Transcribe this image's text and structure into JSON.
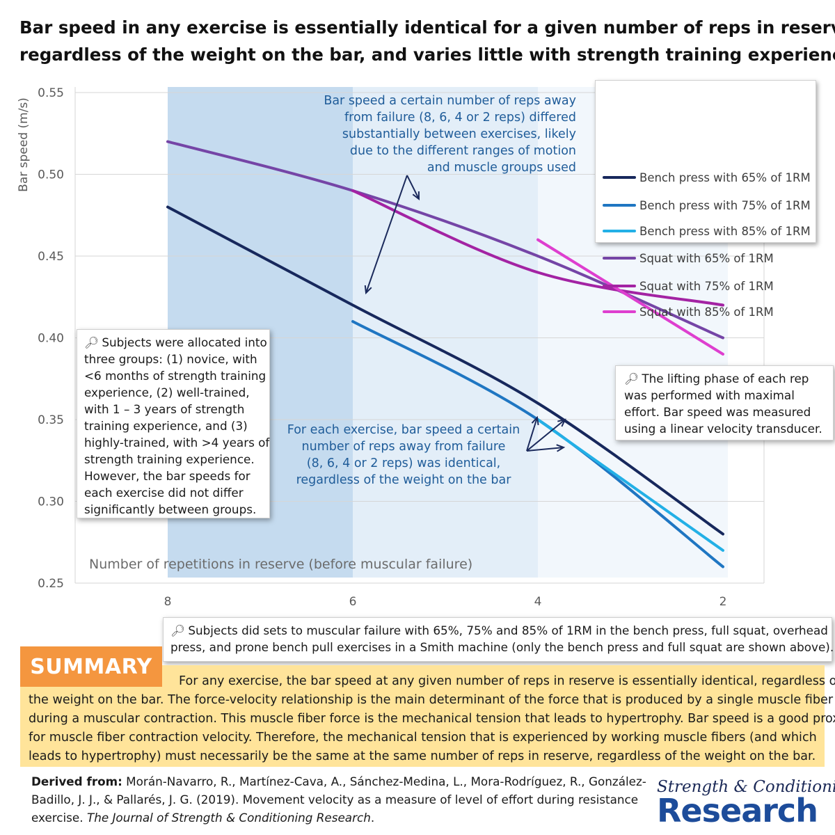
{
  "title_lines": [
    "Bar speed in any exercise is essentially identical for a given number of reps in reserve,",
    "regardless of the weight on the bar, and varies little with strength training experience"
  ],
  "chart_data": {
    "type": "line",
    "title": "Bar speed in any exercise is essentially identical for a given number of reps in reserve, regardless of the weight on the bar, and varies little with strength training experience",
    "xlabel": "Number of repetitions in reserve (before muscular failure)",
    "ylabel": "Bar speed (m/s)",
    "x_ticks": [
      8,
      6,
      4,
      2
    ],
    "y_ticks": [
      "0.25",
      "0.30",
      "0.35",
      "0.40",
      "0.45",
      "0.50",
      "0.55"
    ],
    "ylim": [
      0.25,
      0.55
    ],
    "xlim": [
      8.9,
      1.6
    ],
    "grid": true,
    "shaded_regions": [
      {
        "from": 8,
        "to": 6,
        "color": "#c5dbef"
      },
      {
        "from": 6,
        "to": 4,
        "color": "#e3eef8"
      },
      {
        "from": 4,
        "to": 2,
        "color": "#f2f7fc"
      }
    ],
    "series": [
      {
        "name": "Bench press with 65% of 1RM",
        "color": "#17285c",
        "x": [
          8,
          6,
          4,
          2
        ],
        "values": [
          0.48,
          0.42,
          0.36,
          0.28
        ]
      },
      {
        "name": "Bench press with 75% of 1RM",
        "color": "#1f76c2",
        "x": [
          6,
          4,
          2
        ],
        "values": [
          0.41,
          0.35,
          0.26
        ]
      },
      {
        "name": "Bench press with 85% of 1RM",
        "color": "#23b0e6",
        "x": [
          4,
          2
        ],
        "values": [
          0.35,
          0.27
        ]
      },
      {
        "name": "Squat with 65% of 1RM",
        "color": "#7545a6",
        "x": [
          8,
          6,
          4,
          2
        ],
        "values": [
          0.52,
          0.49,
          0.45,
          0.4
        ]
      },
      {
        "name": "Squat with 75% of 1RM",
        "color": "#a323a3",
        "x": [
          6,
          4,
          2
        ],
        "values": [
          0.49,
          0.44,
          0.42
        ]
      },
      {
        "name": "Squat with 85% of 1RM",
        "color": "#de3fcf",
        "x": [
          4,
          2
        ],
        "values": [
          0.46,
          0.39
        ]
      }
    ],
    "legend": "top-right"
  },
  "callouts": {
    "between_exercises": [
      "Bar speed a certain number of reps away",
      "from failure (8, 6, 4 or 2 reps) differed",
      "substantially between exercises, likely",
      "due to the different ranges of motion",
      "and muscle groups used"
    ],
    "within_exercise": [
      "For each exercise, bar speed a certain",
      "number of reps away from failure",
      "(8, 6, 4 or 2 reps) was identical,",
      "regardless of the weight on the bar"
    ]
  },
  "notes": {
    "icon": "magnifier-icon",
    "groups": [
      "Subjects were allocated into",
      "three groups: (1) novice, with",
      "<6 months of strength training",
      "experience, (2) well-trained,",
      "with 1 – 3 years of strength",
      "training experience, and (3)",
      "highly-trained, with >4 years of",
      "strength training experience.",
      "However, the bar speeds for",
      "each exercise did not differ",
      "significantly between groups."
    ],
    "lifting": [
      "The lifting phase of each rep",
      "was performed with maximal",
      "effort. Bar speed was measured",
      "using a linear velocity transducer."
    ],
    "protocol": [
      "Subjects did sets to muscular failure with 65%, 75% and 85% of 1RM in the bench press, full squat, overhead",
      "press, and prone bench pull exercises in a Smith machine (only the bench press and full squat are shown above)."
    ]
  },
  "summary": {
    "badge": "SUMMARY",
    "lines": [
      "For any exercise, the bar speed at any given number of reps in reserve is essentially identical, regardless of",
      "the weight on the bar. The force-velocity relationship is the main determinant of the force that is produced by a single muscle fiber",
      "during a muscular contraction. This muscle fiber force is the mechanical tension that leads to hypertrophy. Bar speed is a good proxy",
      "for muscle fiber contraction velocity. Therefore, the mechanical tension that is experienced by working muscle fibers (and which",
      "leads to hypertrophy) must necessarily be the same at the same number of reps in reserve, regardless of the weight on the bar."
    ]
  },
  "citation": {
    "label": "Derived from:",
    "line1": "Morán-Navarro, R., Martínez-Cava, A., Sánchez-Medina, L., Mora-Rodríguez, R., González-",
    "line2": "Badillo, J. J., & Pallarés, J. G. (2019). Movement velocity as a measure of level of effort during resistance",
    "line3_prefix": "exercise. ",
    "journal": "The Journal of Strength & Conditioning Research",
    "line3_suffix": "."
  },
  "brand": {
    "line1": "Strength & Conditioning",
    "line2": "Research"
  }
}
